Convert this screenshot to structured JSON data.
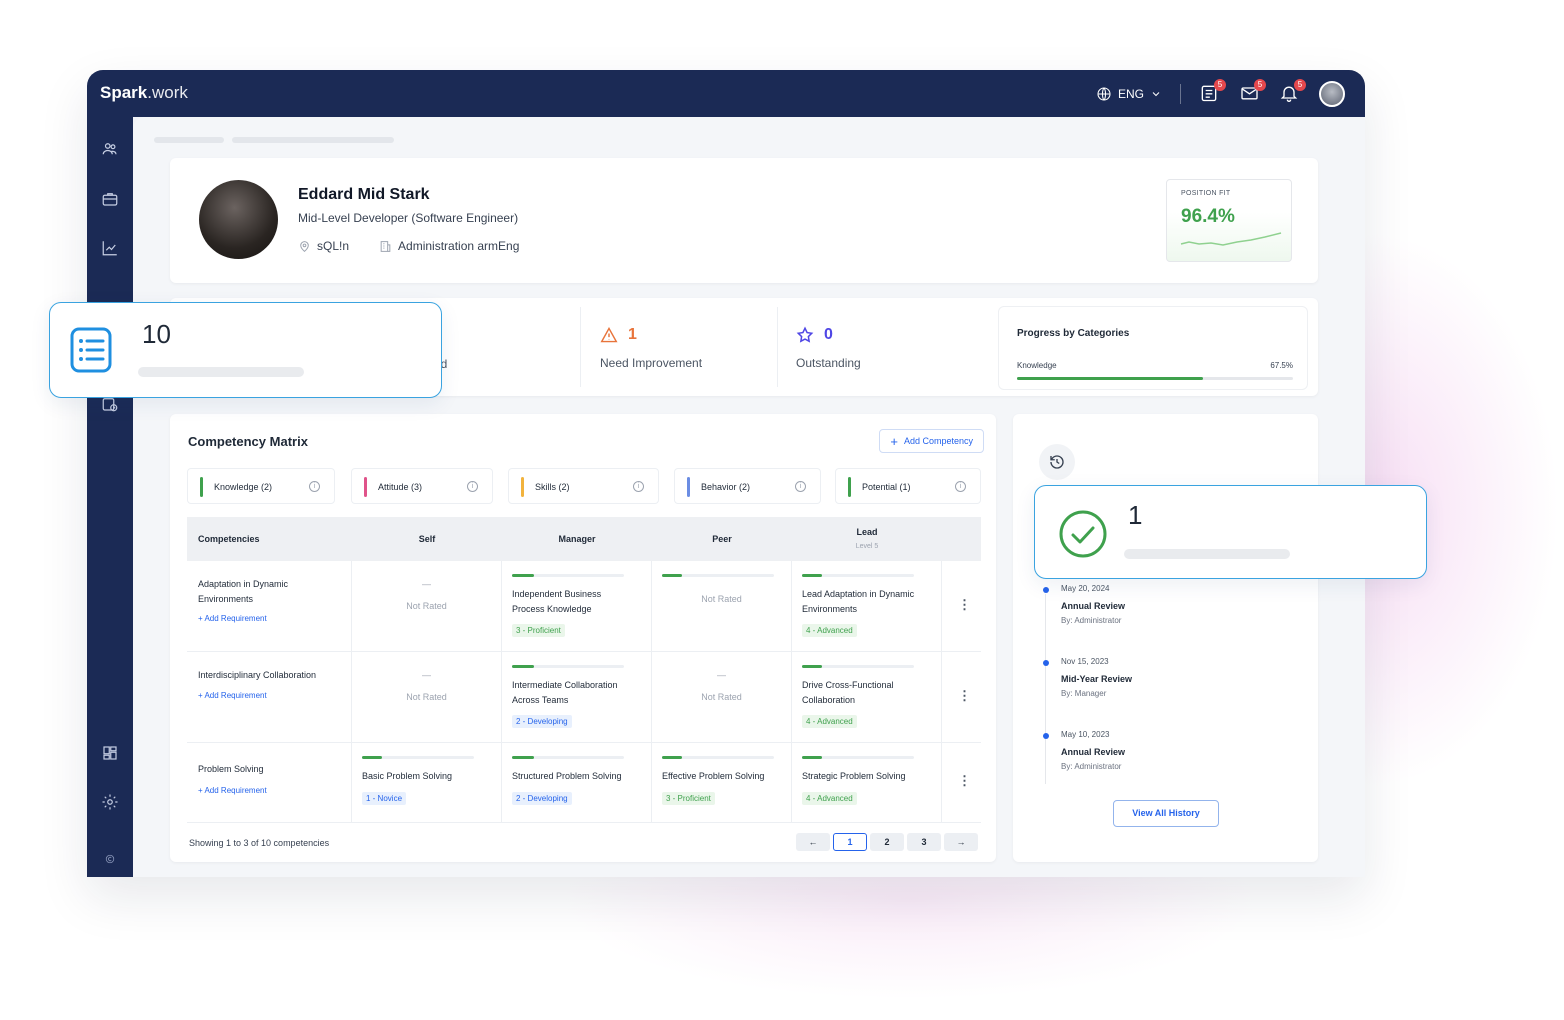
{
  "app": {
    "brand_bold": "Spark",
    "brand_light": ".work"
  },
  "topbar": {
    "language": "ENG",
    "tasks_badge": "5",
    "mail_badge": "5",
    "bell_badge": "5"
  },
  "profile": {
    "name": "Eddard Mid Stark",
    "role": "Mid-Level Developer (Software Engineer)",
    "location": "sQL!n",
    "department": "Administration armEng",
    "position_fit_label": "POSITION FIT",
    "position_fit_value": "96.4%"
  },
  "stats": {
    "met_label_fragment": "ed",
    "need_improvement": {
      "value": "1",
      "label": "Need Improvement"
    },
    "outstanding": {
      "value": "0",
      "label": "Outstanding"
    }
  },
  "progress": {
    "title": "Progress by Categories",
    "category": "Knowledge",
    "percent_label": "67.5%",
    "percent": 67.5
  },
  "matrix": {
    "title": "Competency Matrix",
    "add_button": "Add Competency",
    "categories": [
      {
        "label": "Knowledge (2)",
        "color": "#3fa14d"
      },
      {
        "label": "Attitude (3)",
        "color": "#e0538a"
      },
      {
        "label": "Skills (2)",
        "color": "#f2b33d"
      },
      {
        "label": "Behavior (2)",
        "color": "#6b8de3"
      },
      {
        "label": "Potential (1)",
        "color": "#3fa14d"
      }
    ],
    "headers": {
      "competencies": "Competencies",
      "self": "Self",
      "manager": "Manager",
      "peer": "Peer",
      "lead": "Lead",
      "lead_sub": "Level 5"
    },
    "add_requirement": "Add Requirement",
    "rows": [
      {
        "name_1": "Adaptation in Dynamic",
        "name_2": "Environments",
        "self_dash": "—",
        "self": "Not Rated",
        "manager_1": "Independent Business",
        "manager_2": "Process Knowledge",
        "manager_level": "3 - Proficient",
        "peer": "Not Rated",
        "lead_1": "Lead Adaptation in Dynamic",
        "lead_2": "Environments",
        "lead_level": "4 - Advanced"
      },
      {
        "name_1": "Interdisciplinary Collaboration",
        "self_dash": "—",
        "self": "Not Rated",
        "manager_1": "Intermediate Collaboration",
        "manager_2": "Across Teams",
        "manager_level": "2 - Developing",
        "peer_dash": "—",
        "peer": "Not Rated",
        "lead_1": "Drive Cross-Functional",
        "lead_2": "Collaboration",
        "lead_level": "4 - Advanced"
      },
      {
        "name_1": "Problem Solving",
        "self_1": "Basic Problem Solving",
        "self_level": "1 - Novice",
        "manager_1": "Structured Problem Solving",
        "manager_level": "2 - Developing",
        "peer_1": "Effective Problem Solving",
        "peer_level": "3 - Proficient",
        "lead_1": "Strategic Problem Solving",
        "lead_level": "4 - Advanced"
      }
    ],
    "showing": "Showing 1 to 3 of 10 competencies",
    "pages": [
      "1",
      "2",
      "3"
    ],
    "prev": "←",
    "next": "→"
  },
  "history": {
    "items": [
      {
        "date": "May 20, 2024",
        "title": "Annual Review",
        "by": "By: Administrator"
      },
      {
        "date": "Nov 15, 2023",
        "title": "Mid-Year Review",
        "by": "By: Manager"
      },
      {
        "date": "May 10, 2023",
        "title": "Annual Review",
        "by": "By: Administrator"
      }
    ],
    "view_all": "View All History"
  },
  "float_cards": {
    "list_count": "10",
    "check_count": "1"
  }
}
